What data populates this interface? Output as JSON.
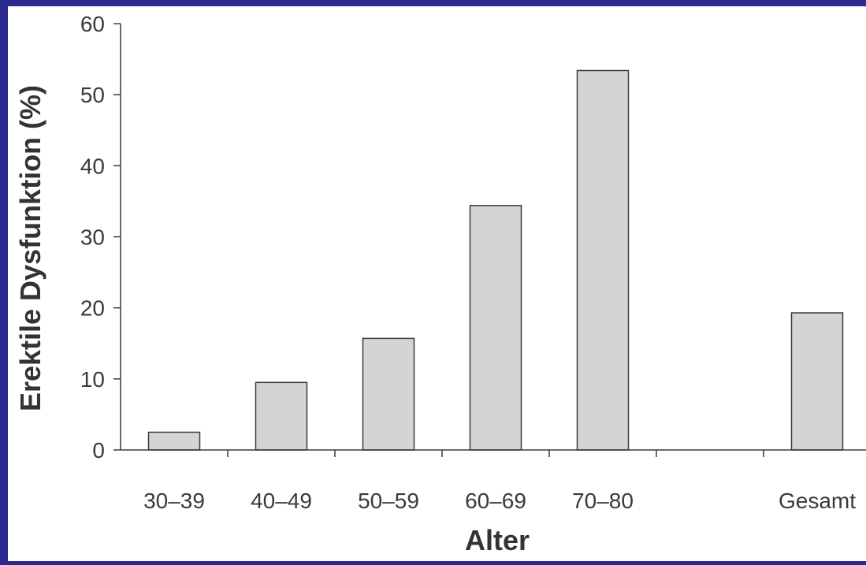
{
  "colors": {
    "frame": "#2b2b8f",
    "background": "#ffffff",
    "bar_fill": "#d4d4d4",
    "bar_stroke": "#3a3a3a",
    "axis": "#3a3a3a",
    "text": "#333333"
  },
  "chart_data": {
    "type": "bar",
    "title": "",
    "xlabel": "Alter",
    "ylabel": "Erektile Dysfunktion (%)",
    "ylim": [
      0,
      60
    ],
    "yticks": [
      0,
      10,
      20,
      30,
      40,
      50,
      60
    ],
    "grid": false,
    "legend": "none",
    "categories": [
      "30–39",
      "40–49",
      "50–59",
      "60–69",
      "70–80",
      "",
      "Gesamt"
    ],
    "values": [
      2.5,
      9.5,
      15.7,
      34.4,
      53.4,
      null,
      19.3
    ]
  }
}
